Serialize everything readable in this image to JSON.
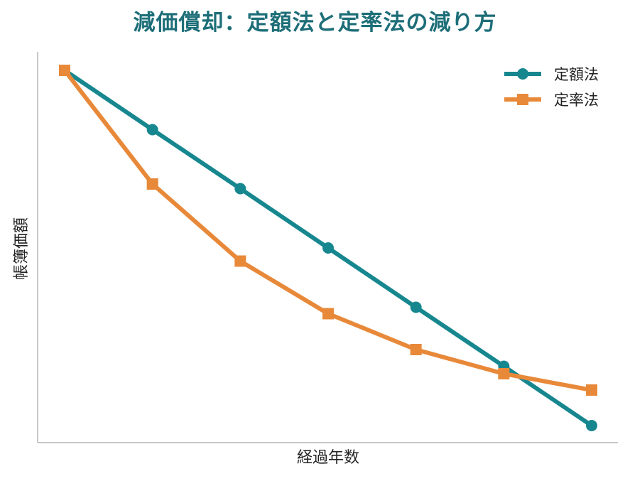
{
  "chart_data": {
    "type": "line",
    "title": "減価償却：定額法と定率法の減り方",
    "xlabel": "経過年数",
    "ylabel": "帳簿価額",
    "x": [
      0,
      1,
      2,
      3,
      4,
      5,
      6
    ],
    "ylim": [
      0,
      1
    ],
    "grid": false,
    "legend_position": "top-right",
    "series": [
      {
        "name": "定額法",
        "color": "#17878f",
        "marker": "circle",
        "values": [
          1.0,
          0.833,
          0.667,
          0.5,
          0.333,
          0.167,
          0.0
        ]
      },
      {
        "name": "定率法",
        "color": "#e8893a",
        "marker": "square",
        "values": [
          1.0,
          0.68,
          0.463,
          0.315,
          0.214,
          0.146,
          0.1
        ]
      }
    ]
  }
}
